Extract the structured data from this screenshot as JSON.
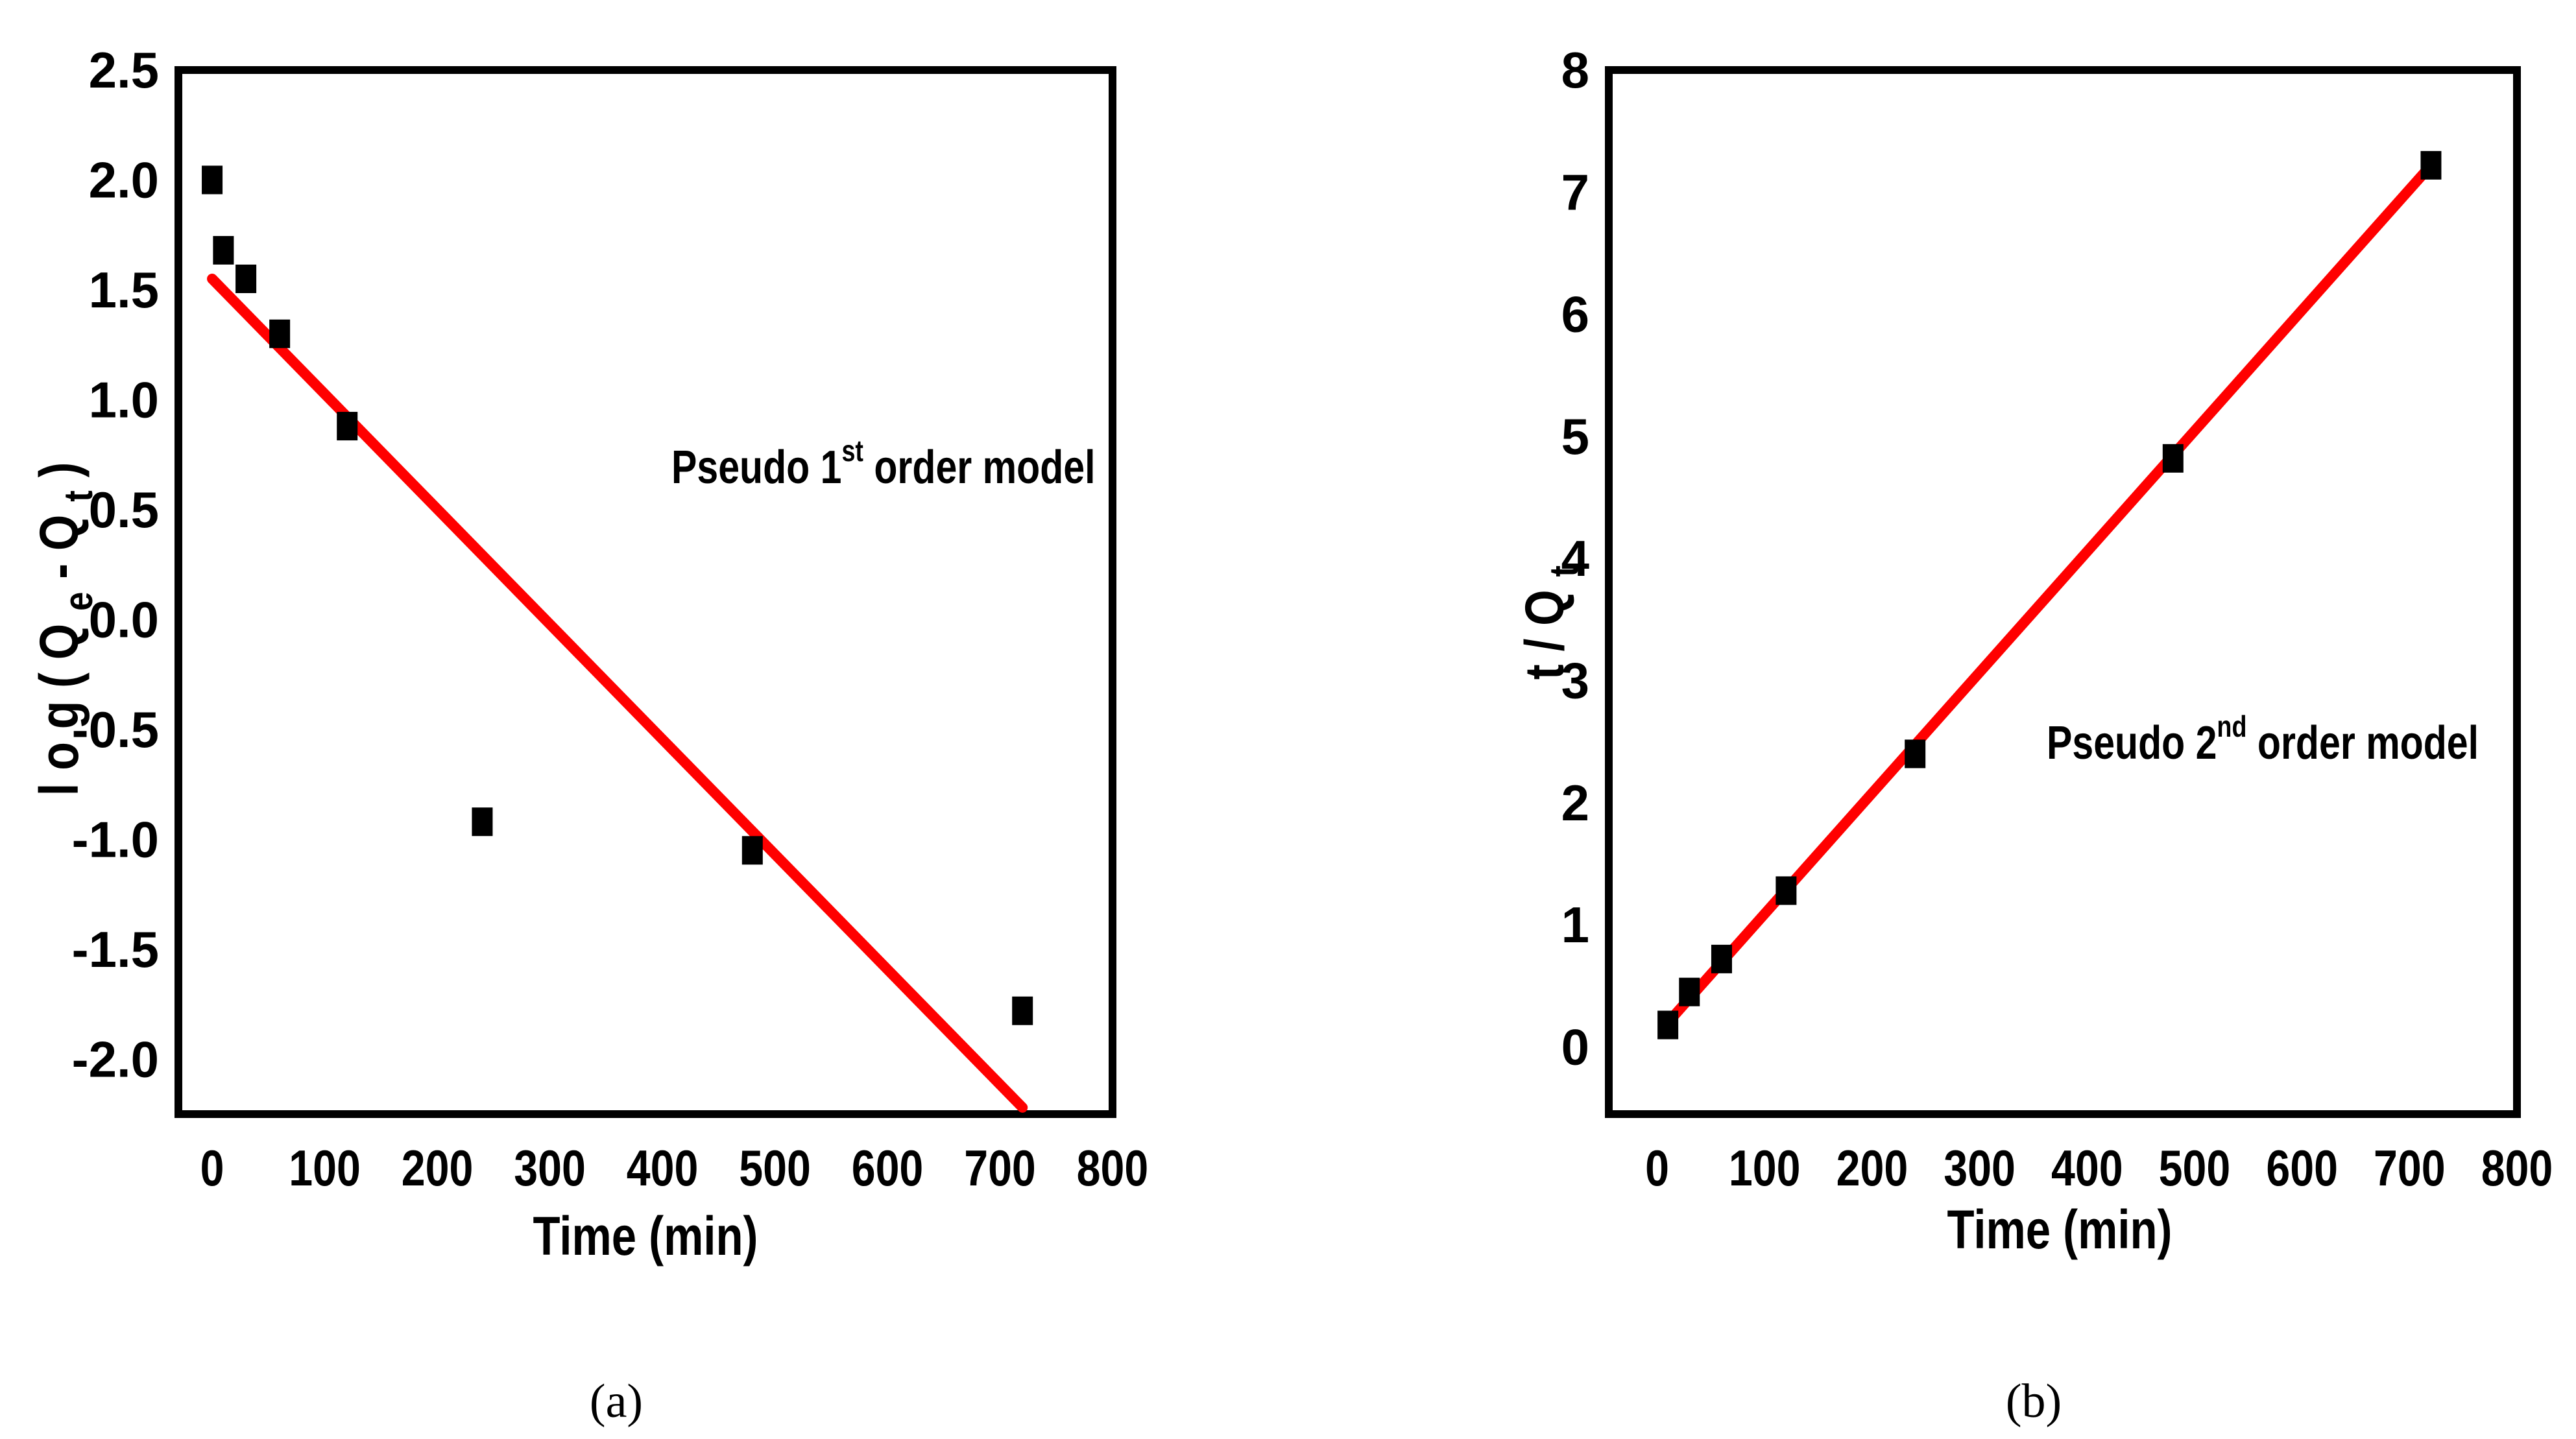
{
  "chart_data": [
    {
      "type": "scatter",
      "caption": "(a)",
      "xlabel": "Time (min)",
      "ylabel": {
        "prefix": "l o g ( Q ",
        "sub1": "e",
        "mid": " - Q ",
        "sub2": "t",
        "suffix": " )"
      },
      "annotation": {
        "prefix": "Pseudo 1",
        "sup": "st",
        "suffix": " order model"
      },
      "xlim": [
        -30,
        800
      ],
      "ylim": [
        -2.25,
        2.5
      ],
      "xticks": [
        0,
        100,
        200,
        300,
        400,
        500,
        600,
        700,
        800
      ],
      "xtick_labels": [
        "0",
        "100",
        "200",
        "300",
        "400",
        "500",
        "600",
        "700",
        "800"
      ],
      "yticks": [
        2.5,
        2.0,
        1.5,
        1.0,
        0.5,
        0.0,
        -0.5,
        -1.0,
        -1.5,
        -2.0
      ],
      "ytick_labels": [
        "2.5",
        "2.0",
        "1.5",
        "1.0",
        "0.5",
        "0.0",
        "-0.5",
        "-1.0",
        "-1.5",
        "-2.0"
      ],
      "points": {
        "x": [
          0,
          10,
          30,
          60,
          120,
          240,
          480,
          720
        ],
        "y": [
          2.0,
          1.68,
          1.55,
          1.3,
          0.88,
          -0.92,
          -1.05,
          -1.78
        ]
      },
      "fit_line": {
        "x": [
          0,
          720
        ],
        "y": [
          1.55,
          -2.22
        ]
      },
      "colors": {
        "points": "#000000",
        "line": "#ff0000",
        "frame": "#000000"
      }
    },
    {
      "type": "scatter",
      "caption": "(b)",
      "xlabel": "Time (min)",
      "ylabel": {
        "prefix": "t / Q ",
        "sub1": "t"
      },
      "annotation": {
        "prefix": "Pseudo 2",
        "sup": "nd",
        "suffix": " order model"
      },
      "xlim": [
        -45,
        800
      ],
      "ylim": [
        -0.55,
        8
      ],
      "xticks": [
        0,
        100,
        200,
        300,
        400,
        500,
        600,
        700,
        800
      ],
      "xtick_labels": [
        "0",
        "100",
        "200",
        "300",
        "400",
        "500",
        "600",
        "700",
        "800"
      ],
      "yticks": [
        8,
        7,
        6,
        5,
        4,
        3,
        2,
        1,
        0
      ],
      "ytick_labels": [
        "8",
        "7",
        "6",
        "5",
        "4",
        "3",
        "2",
        "1",
        "0"
      ],
      "points": {
        "x": [
          10,
          30,
          60,
          120,
          240,
          480,
          720
        ],
        "y": [
          0.18,
          0.45,
          0.72,
          1.28,
          2.4,
          4.82,
          7.22
        ]
      },
      "fit_line": {
        "x": [
          10,
          720
        ],
        "y": [
          0.2,
          7.22
        ]
      },
      "colors": {
        "points": "#000000",
        "line": "#ff0000",
        "frame": "#000000"
      }
    }
  ]
}
